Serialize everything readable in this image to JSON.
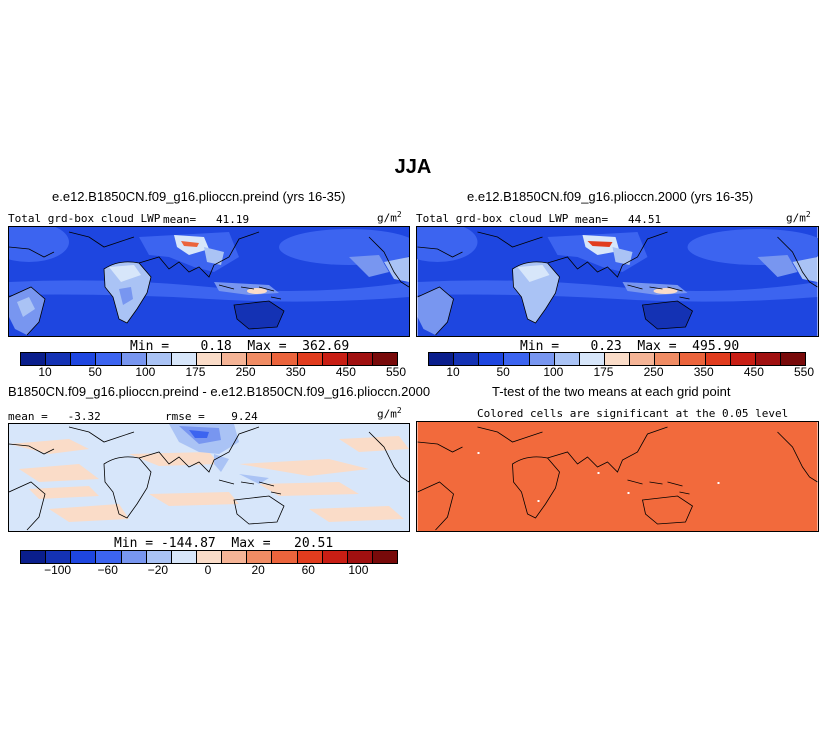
{
  "title": "JJA",
  "panels": {
    "p1": {
      "title": "e.e12.B1850CN.f09_g16.plioccn.preind (yrs 16-35)",
      "left_label": "Total grd-box cloud LWP",
      "mean_text": "mean=   41.19",
      "unit": "g/m",
      "unit_exp": "2",
      "minmax": "Min =    0.18  Max =  362.69"
    },
    "p2": {
      "title": "e.e12.B1850CN.f09_g16.plioccn.2000 (yrs 16-35)",
      "left_label": "Total grd-box cloud LWP",
      "mean_text": "mean=   44.51",
      "unit": "g/m",
      "unit_exp": "2",
      "minmax": "Min =    0.23  Max =  495.90"
    },
    "p3": {
      "title": "B1850CN.f09_g16.plioccn.preind - e.e12.B1850CN.f09_g16.plioccn.2000",
      "left_label": "mean =   -3.32",
      "rmse_text": "rmse =    9.24",
      "unit": "g/m",
      "unit_exp": "2",
      "minmax": "Min = -144.87  Max =   20.51"
    },
    "p4": {
      "title": "T-test of the two means at each grid point",
      "subtitle": "Colored cells are significant at the 0.05 level"
    }
  },
  "colorbars": {
    "abs_colors": [
      "#0a1e8c",
      "#1432b4",
      "#1e46e0",
      "#3c64f0",
      "#7896f0",
      "#aac3f5",
      "#d7e6fa",
      "#fadcc8",
      "#f5b496",
      "#f08c64",
      "#eb643c",
      "#e13c1e",
      "#c81e14",
      "#a01010",
      "#780a0a"
    ],
    "abs_labels": [
      "10",
      "50",
      "100",
      "175",
      "250",
      "350",
      "450",
      "550"
    ],
    "diff_colors": [
      "#0a1e8c",
      "#1432b4",
      "#1e46e0",
      "#3c64f0",
      "#7896f0",
      "#aac3f5",
      "#d7e6fa",
      "#fadcc8",
      "#f5b496",
      "#f08c64",
      "#eb643c",
      "#e13c1e",
      "#c81e14",
      "#a01010",
      "#780a0a"
    ],
    "diff_labels": [
      "−100",
      "−60",
      "−20",
      "0",
      "20",
      "60",
      "100"
    ]
  },
  "map_colors": {
    "ocean_base": "#1e46e0",
    "low": "#3c64f0",
    "mid": "#7896f0",
    "light": "#aac3f5",
    "pale": "#d7e6fa",
    "warm": "#fadcc8",
    "hot": "#eb643c",
    "ttest_fill": "#f26a3c",
    "diff_base": "#d7e6fa"
  }
}
